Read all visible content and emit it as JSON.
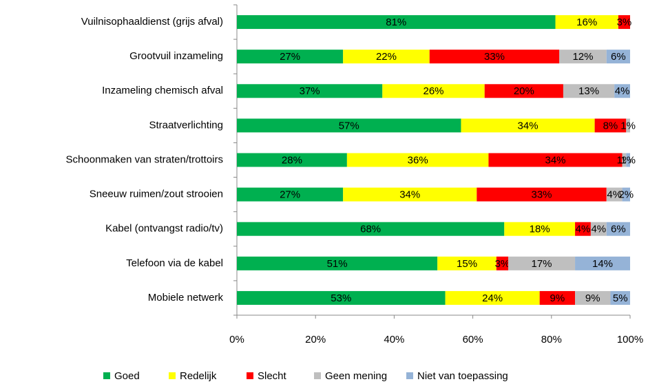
{
  "chart_data": {
    "type": "bar",
    "orientation": "horizontal",
    "stacked": true,
    "categories": [
      "Vuilnisophaaldienst (grijs afval)",
      "Grootvuil inzameling",
      "Inzameling chemisch afval",
      "Straatverlichting",
      "Schoonmaken van straten/trottoirs",
      "Sneeuw ruimen/zout strooien",
      "Kabel (ontvangst radio/tv)",
      "Telefoon via de kabel",
      "Mobiele netwerk"
    ],
    "series": [
      {
        "name": "Goed",
        "color": "#00b050",
        "values": [
          81,
          27,
          37,
          57,
          28,
          27,
          68,
          51,
          53
        ],
        "value_labels": [
          "81%",
          "27%",
          "37%",
          "57%",
          "28%",
          "27%",
          "68%",
          "51%",
          "53%"
        ]
      },
      {
        "name": "Redelijk",
        "color": "#ffff00",
        "values": [
          16,
          22,
          26,
          34,
          36,
          34,
          18,
          15,
          24
        ],
        "value_labels": [
          "16%",
          "22%",
          "26%",
          "34%",
          "36%",
          "34%",
          "18%",
          "15%",
          "24%"
        ]
      },
      {
        "name": "Slecht",
        "color": "#ff0000",
        "values": [
          3,
          33,
          20,
          8,
          34,
          33,
          4,
          3,
          9
        ],
        "value_labels": [
          "3%",
          "33%",
          "20%",
          "8%",
          "34%",
          "33%",
          "4%",
          "3%",
          "9%"
        ]
      },
      {
        "name": "Geen mening",
        "color": "#bfbfbf",
        "values": [
          0,
          12,
          13,
          1,
          1,
          4,
          4,
          17,
          9
        ],
        "value_labels": [
          null,
          "12%",
          "13%",
          "1%",
          "1%",
          "4%",
          "4%",
          "17%",
          "9%"
        ]
      },
      {
        "name": "Niet van toepassing",
        "color": "#95b3d7",
        "values": [
          0,
          6,
          4,
          0,
          1,
          2,
          6,
          14,
          5
        ],
        "value_labels": [
          null,
          "6%",
          "4%",
          null,
          "1%",
          "2%",
          "6%",
          "14%",
          "5%"
        ]
      }
    ],
    "xlim": [
      0,
      100
    ],
    "xticks": [
      {
        "value": 0,
        "label": "0%"
      },
      {
        "value": 20,
        "label": "20%"
      },
      {
        "value": 40,
        "label": "40%"
      },
      {
        "value": 60,
        "label": "60%"
      },
      {
        "value": 80,
        "label": "80%"
      },
      {
        "value": 100,
        "label": "100%"
      }
    ],
    "legend": "bottom"
  }
}
